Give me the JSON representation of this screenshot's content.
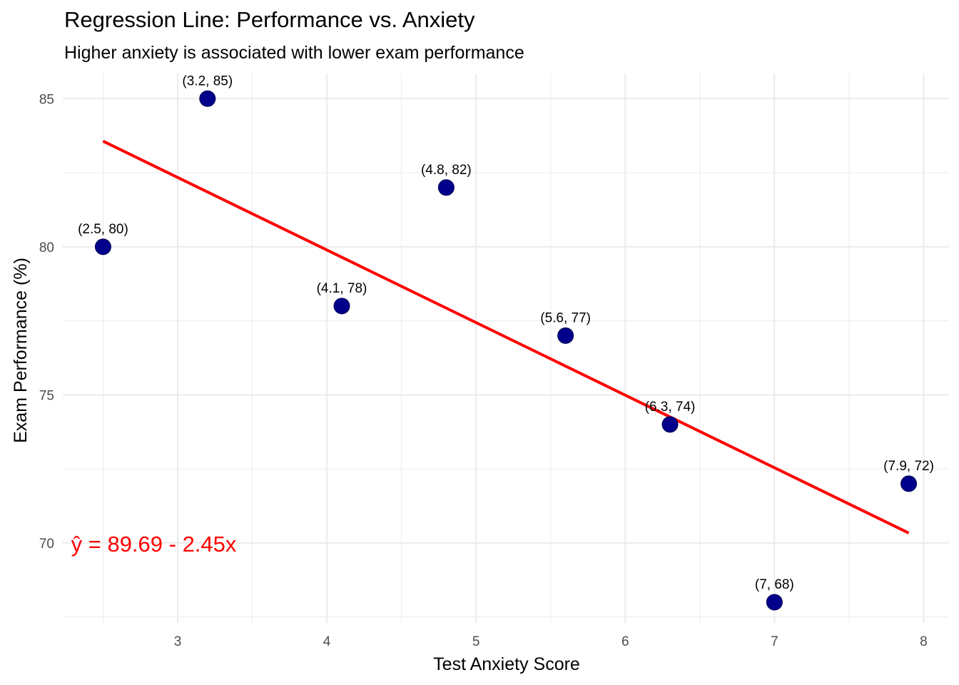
{
  "chart_data": {
    "type": "scatter",
    "title": "Regression Line: Performance vs. Anxiety",
    "subtitle": "Higher anxiety is associated with lower exam performance",
    "xlabel": "Test Anxiety Score",
    "ylabel": "Exam Performance (%)",
    "xlim": [
      2.23,
      8.17
    ],
    "ylim": [
      67.3,
      85.85
    ],
    "x_ticks": [
      3,
      4,
      5,
      6,
      7,
      8
    ],
    "y_ticks": [
      70,
      75,
      80,
      85
    ],
    "grid": true,
    "points": [
      {
        "x": 2.5,
        "y": 80,
        "label": "(2.5, 80)"
      },
      {
        "x": 3.2,
        "y": 85,
        "label": "(3.2, 85)"
      },
      {
        "x": 4.1,
        "y": 78,
        "label": "(4.1, 78)"
      },
      {
        "x": 4.8,
        "y": 82,
        "label": "(4.8, 82)"
      },
      {
        "x": 5.6,
        "y": 77,
        "label": "(5.6, 77)"
      },
      {
        "x": 6.3,
        "y": 74,
        "label": "(6.3, 74)"
      },
      {
        "x": 7.0,
        "y": 68,
        "label": "(7, 68)"
      },
      {
        "x": 7.9,
        "y": 72,
        "label": "(7.9, 72)"
      }
    ],
    "regression": {
      "intercept": 89.69,
      "slope": -2.45,
      "x_range": [
        2.5,
        7.9
      ]
    },
    "annotation": {
      "text": "ŷ = 89.69 - 2.45x",
      "x": 2.3,
      "y": 70
    },
    "colors": {
      "points": "#00008B",
      "line": "#FF0000",
      "annotation": "#FF0000",
      "grid": "#EBEBEB"
    }
  }
}
